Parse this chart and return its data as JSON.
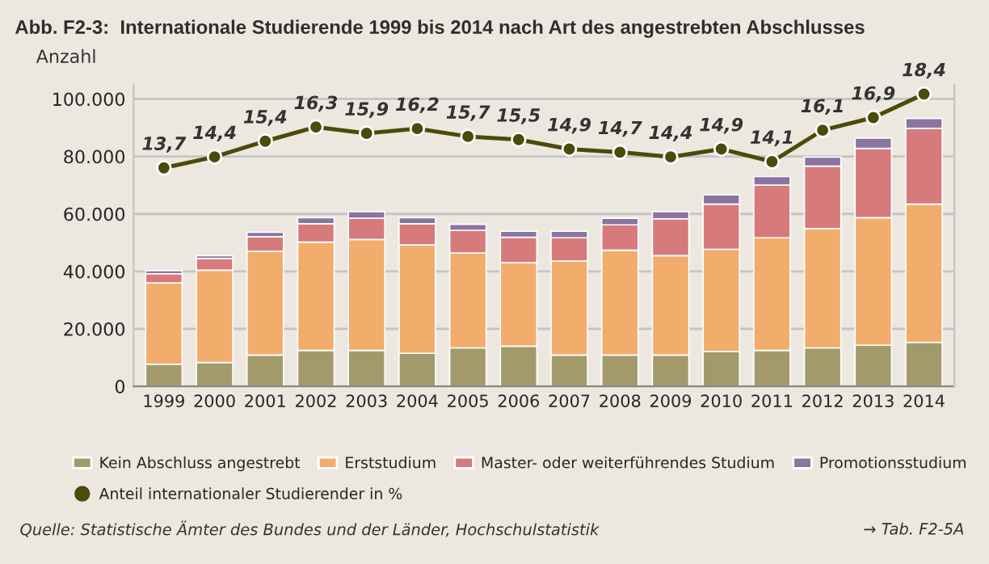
{
  "chart_data": {
    "type": "bar",
    "stacked": true,
    "title": "Abb. F2-3:  Internationale Studierende 1999 bis 2014 nach Art des angestrebten Abschlusses",
    "ylabel": "Anzahl",
    "categories": [
      "1999",
      "2000",
      "2001",
      "2002",
      "2003",
      "2004",
      "2005",
      "2006",
      "2007",
      "2008",
      "2009",
      "2010",
      "2011",
      "2012",
      "2013",
      "2014"
    ],
    "series": [
      {
        "name": "Kein Abschluss angestrebt",
        "color": "#a39a6c",
        "values": [
          7700,
          8300,
          10900,
          12500,
          12500,
          11500,
          13400,
          14000,
          10900,
          10900,
          10900,
          12100,
          12500,
          13400,
          14300,
          15300
        ]
      },
      {
        "name": "Erststudium",
        "color": "#f2ad6c",
        "values": [
          28300,
          32100,
          36100,
          37700,
          38600,
          37700,
          33000,
          29000,
          32700,
          36500,
          34600,
          35600,
          39200,
          41500,
          44400,
          48100
        ]
      },
      {
        "name": "Master- oder weiterführendes Studium",
        "color": "#d67a7c",
        "values": [
          3200,
          4100,
          5100,
          6400,
          7400,
          7400,
          7900,
          8900,
          8100,
          8800,
          12800,
          15700,
          18300,
          21700,
          24100,
          26400
        ]
      },
      {
        "name": "Promotionsstudium",
        "color": "#8a74a0",
        "values": [
          1100,
          1000,
          1500,
          2100,
          2300,
          2100,
          2100,
          2100,
          2300,
          2300,
          2500,
          3200,
          3000,
          3200,
          3600,
          3400
        ]
      },
      {
        "name": "Anteil internationaler Studierender in %",
        "type": "line",
        "axis": "y2",
        "marker": "circle",
        "color": "#4d4a0a",
        "values": [
          13.7,
          14.4,
          15.4,
          16.3,
          15.9,
          16.2,
          15.7,
          15.5,
          14.9,
          14.7,
          14.4,
          14.9,
          14.1,
          16.1,
          16.9,
          18.4
        ],
        "value_labels": [
          "13,7",
          "14,4",
          "15,4",
          "16,3",
          "15,9",
          "16,2",
          "15,7",
          "15,5",
          "14,9",
          "14,7",
          "14,4",
          "14,9",
          "14,1",
          "16,1",
          "16,9",
          "18,4"
        ]
      }
    ],
    "ylim": [
      0,
      105000
    ],
    "yticks": [
      0,
      {
        "value": 20000,
        "label": "20.000"
      },
      {
        "value": 40000,
        "label": "40.000"
      },
      {
        "value": 60000,
        "label": "60.000"
      },
      {
        "value": 80000,
        "label": "80.000"
      },
      {
        "value": 100000,
        "label": "100.000"
      }
    ],
    "y2lim": [
      -0.2,
      19.0
    ],
    "tick_labels": [
      "x",
      "y"
    ],
    "grid": "y",
    "legend": "bottom",
    "annotations": [
      "Quelle: Statistische Ämter des Bundes und der Länder, Hochschulstatistik",
      "→ Tab. F2-5A"
    ]
  }
}
